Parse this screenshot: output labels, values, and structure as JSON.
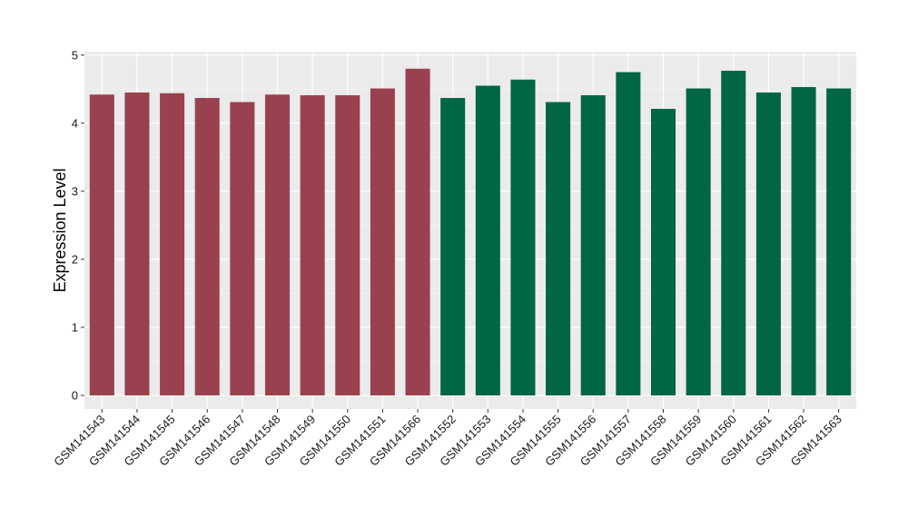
{
  "chart_data": {
    "type": "bar",
    "title": "",
    "xlabel": "",
    "ylabel": "Expression Level",
    "ylim": [
      -0.2,
      5.05
    ],
    "yticks": [
      0,
      1,
      2,
      3,
      4,
      5
    ],
    "grid": true,
    "panel_background": "#ebebeb",
    "categories": [
      "GSM141543",
      "GSM141544",
      "GSM141545",
      "GSM141546",
      "GSM141547",
      "GSM141548",
      "GSM141549",
      "GSM141550",
      "GSM141551",
      "GSM141566",
      "GSM141552",
      "GSM141553",
      "GSM141554",
      "GSM141555",
      "GSM141556",
      "GSM141557",
      "GSM141558",
      "GSM141559",
      "GSM141560",
      "GSM141561",
      "GSM141562",
      "GSM141563"
    ],
    "values": [
      4.42,
      4.45,
      4.44,
      4.37,
      4.31,
      4.42,
      4.41,
      4.41,
      4.51,
      4.8,
      4.37,
      4.55,
      4.64,
      4.31,
      4.41,
      4.75,
      4.21,
      4.51,
      4.77,
      4.45,
      4.53,
      4.51
    ],
    "groups": [
      0,
      0,
      0,
      0,
      0,
      0,
      0,
      0,
      0,
      0,
      1,
      1,
      1,
      1,
      1,
      1,
      1,
      1,
      1,
      1,
      1,
      1
    ],
    "group_colors": [
      "#9a4150",
      "#006644"
    ]
  }
}
